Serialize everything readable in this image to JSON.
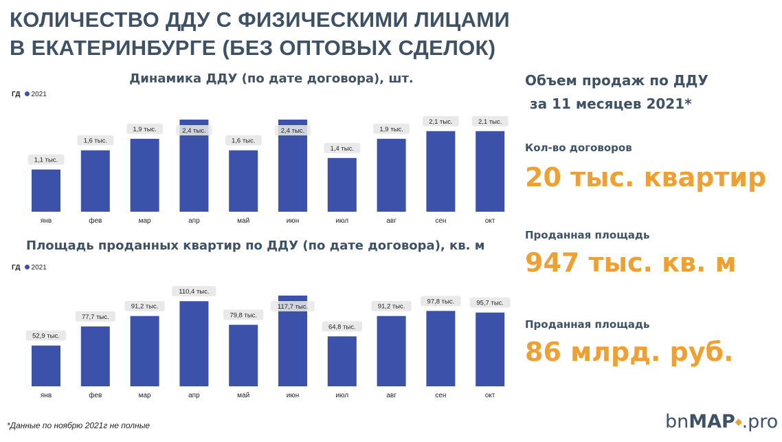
{
  "title_line1": "КОЛИЧЕСТВО ДДУ С ФИЗИЧЕСКИМИ ЛИЦАМИ",
  "title_line2": "В ЕКАТЕРИНБУРГЕ (БЕЗ ОПТОВЫХ СДЕЛОК)",
  "legend": {
    "key": "ГД",
    "series": "2021"
  },
  "colors": {
    "bar": "#3c51a9",
    "accent": "#f0a030",
    "heading": "#3e5165",
    "label_bg": "#e9e9e9"
  },
  "chart_data": [
    {
      "type": "bar",
      "title": "Динамика ДДУ (по дате договора), шт.",
      "categories": [
        "янв",
        "фев",
        "мар",
        "апр",
        "май",
        "июн",
        "июл",
        "авг",
        "сен",
        "окт"
      ],
      "series": [
        {
          "name": "2021",
          "values": [
            1100,
            1600,
            1900,
            2400,
            1600,
            2400,
            1400,
            1900,
            2100,
            2100
          ]
        }
      ],
      "data_labels": [
        "1,1 тыс.",
        "1,6 тыс.",
        "1,9 тыс.",
        "2,4 тыс.",
        "1,6 тыс.",
        "2,4 тыс.",
        "1,4 тыс.",
        "1,9 тыс.",
        "2,1 тыс.",
        "2,1 тыс."
      ],
      "ylim": [
        0,
        2400
      ],
      "grid": false
    },
    {
      "type": "bar",
      "title": "Площадь проданных квартир по ДДУ (по дате договора), кв. м",
      "categories": [
        "янв",
        "фев",
        "мар",
        "апр",
        "май",
        "июн",
        "июл",
        "авг",
        "сен",
        "окт"
      ],
      "series": [
        {
          "name": "2021",
          "values": [
            52900,
            77700,
            91200,
            110400,
            79800,
            117700,
            64800,
            91200,
            97800,
            95700
          ]
        }
      ],
      "data_labels": [
        "52,9 тыс.",
        "77,7 тыс.",
        "91,2 тыс.",
        "110,4 тыс.",
        "79,8 тыс.",
        "117,7 тыс.",
        "64,8 тыс.",
        "91,2 тыс.",
        "97,8 тыс.",
        "95,7 тыс."
      ],
      "ylim": [
        0,
        117700
      ],
      "grid": false
    }
  ],
  "summary": {
    "heading_line1": "Объем продаж по ДДУ",
    "heading_line2": " за 11 месяцев 2021*",
    "stats": [
      {
        "label": "Кол-во договоров",
        "value": "20 тыс. квартир"
      },
      {
        "label": "Проданная площадь",
        "value": "947 тыс. кв. м"
      },
      {
        "label": "Проданная площадь",
        "value": "86 млрд. руб."
      }
    ]
  },
  "footnote": "*Данные по ноябрю 2021г не полные",
  "logo": {
    "part1": "bn",
    "part2": "MAP",
    "part3": ".pro"
  }
}
